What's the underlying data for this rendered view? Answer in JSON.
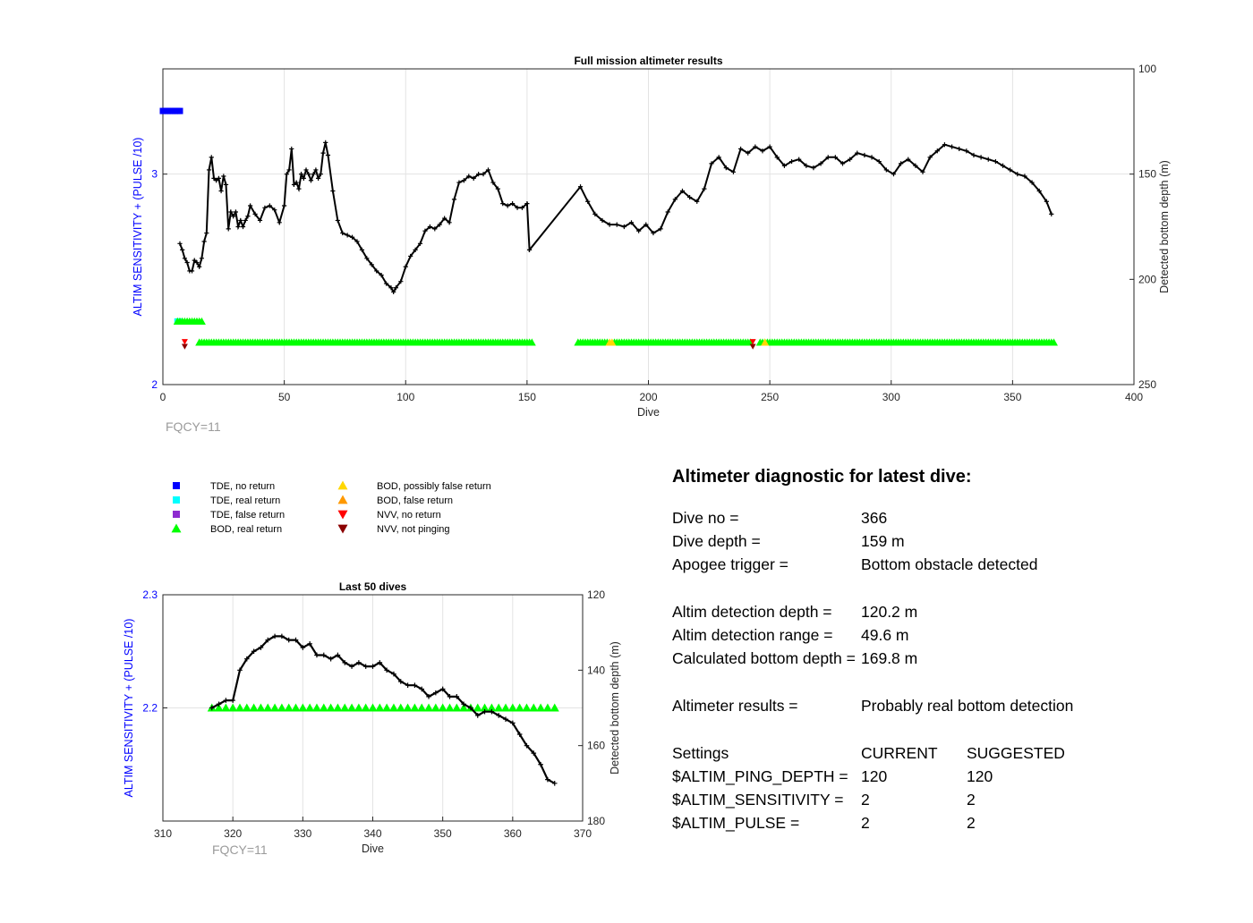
{
  "chart_data": [
    {
      "type": "scatter",
      "title": "Full mission altimeter results",
      "xlabel": "Dive",
      "ylabel_left": "ALTIM SENSITIVITY + (PULSE /10)",
      "ylabel_right": "Detected bottom depth (m)",
      "xlim": [
        0,
        400
      ],
      "ylim_left": [
        2,
        3.5
      ],
      "ylim_right": [
        100,
        250
      ],
      "right_axis_reversed": true,
      "grid": true,
      "xticks": [
        "0",
        "50",
        "100",
        "150",
        "200",
        "250",
        "300",
        "350",
        "400"
      ],
      "yticks_left": [
        "2",
        "3"
      ],
      "yticks_right": [
        "100",
        "150",
        "200",
        "250"
      ],
      "annotation": "FQCY=11",
      "tde_no_return": {
        "dives": [
          0,
          1,
          2,
          3,
          4,
          5,
          6,
          7
        ],
        "value": 3.3
      },
      "tde_real_return": {
        "dives": [
          6,
          7
        ],
        "value": 2.3
      },
      "bod_real_return_upper": {
        "dives": [
          6,
          7,
          8,
          9,
          10,
          11,
          12,
          13,
          14,
          15,
          16
        ],
        "value": 2.3
      },
      "bod_real_return_lower": {
        "ranges": [
          [
            15,
            152
          ],
          [
            171,
            183
          ],
          [
            186,
            198
          ],
          [
            199,
            242
          ],
          [
            246,
            367
          ]
        ],
        "value": 2.2
      },
      "bod_possibly_false": {
        "dives": [
          184,
          185,
          248
        ],
        "value": 2.2
      },
      "nvv_no_return": {
        "dives": [
          9,
          243
        ],
        "value": 2.2
      },
      "nvv_not_pinging": {
        "dives": [
          9,
          243
        ],
        "value": 2.19
      },
      "bottom_depth": {
        "x": [
          7,
          8,
          9,
          10,
          11,
          12,
          13,
          14,
          15,
          16,
          17,
          18,
          19,
          20,
          21,
          22,
          23,
          24,
          25,
          26,
          27,
          28,
          29,
          30,
          31,
          32,
          33,
          34,
          35,
          36,
          38,
          40,
          42,
          44,
          46,
          48,
          50,
          51,
          52,
          53,
          54,
          55,
          56,
          57,
          58,
          59,
          60,
          61,
          62,
          63,
          64,
          65,
          66,
          67,
          68,
          70,
          72,
          74,
          76,
          78,
          80,
          82,
          84,
          86,
          88,
          90,
          92,
          94,
          95,
          96,
          98,
          100,
          102,
          104,
          106,
          108,
          110,
          112,
          114,
          116,
          118,
          120,
          122,
          124,
          126,
          128,
          130,
          132,
          134,
          136,
          138,
          140,
          142,
          144,
          146,
          148,
          150,
          151,
          172,
          175,
          178,
          181,
          184,
          187,
          190,
          193,
          196,
          199,
          202,
          205,
          208,
          211,
          214,
          217,
          220,
          223,
          226,
          229,
          232,
          235,
          238,
          241,
          244,
          247,
          250,
          253,
          256,
          259,
          262,
          265,
          268,
          271,
          274,
          277,
          280,
          283,
          286,
          289,
          292,
          295,
          298,
          301,
          304,
          307,
          310,
          313,
          316,
          319,
          322,
          325,
          328,
          331,
          334,
          337,
          340,
          343,
          346,
          349,
          352,
          355,
          358,
          361,
          364,
          366
        ],
        "y": [
          183,
          186,
          190,
          192,
          196,
          196,
          191,
          192,
          194,
          190,
          182,
          178,
          148,
          142,
          152,
          153,
          152,
          158,
          151,
          155,
          176,
          168,
          170,
          168,
          175,
          172,
          175,
          172,
          170,
          165,
          169,
          172,
          166,
          165,
          167,
          173,
          165,
          150,
          148,
          138,
          155,
          154,
          157,
          150,
          152,
          148,
          150,
          153,
          150,
          148,
          152,
          150,
          140,
          135,
          141,
          158,
          172,
          178,
          179,
          180,
          182,
          186,
          190,
          193,
          196,
          198,
          202,
          204,
          206,
          204,
          201,
          194,
          189,
          186,
          183,
          177,
          175,
          176,
          174,
          171,
          173,
          162,
          154,
          153,
          151,
          152,
          150,
          150,
          148,
          154,
          157,
          164,
          165,
          164,
          166,
          166,
          164,
          186,
          156,
          163,
          169,
          172,
          174,
          174,
          175,
          173,
          177,
          174,
          178,
          176,
          168,
          162,
          158,
          161,
          163,
          157,
          145,
          142,
          147,
          149,
          138,
          140,
          137,
          139,
          137,
          142,
          146,
          144,
          143,
          146,
          147,
          145,
          142,
          142,
          145,
          143,
          140,
          141,
          142,
          144,
          148,
          150,
          145,
          143,
          146,
          149,
          142,
          139,
          136,
          137,
          138,
          139,
          141,
          142,
          143,
          144,
          146,
          148,
          150,
          151,
          154,
          158,
          163,
          169
        ]
      }
    },
    {
      "type": "scatter",
      "title": "Last 50 dives",
      "xlabel": "Dive",
      "ylabel_left": "ALTIM SENSITIVITY + (PULSE /10)",
      "ylabel_right": "Detected bottom depth (m)",
      "xlim": [
        310,
        370
      ],
      "ylim_left": [
        2.1,
        2.3
      ],
      "ylim_right": [
        120,
        180
      ],
      "right_axis_reversed": true,
      "grid": true,
      "xticks": [
        "310",
        "320",
        "330",
        "340",
        "350",
        "360",
        "370"
      ],
      "yticks_left": [
        "2.2",
        "2.3"
      ],
      "yticks_right": [
        "120",
        "140",
        "160",
        "180"
      ],
      "annotation": "FQCY=11",
      "bod_real_return": {
        "range": [
          317,
          366
        ],
        "value": 2.2
      },
      "bottom_depth": {
        "x": [
          317,
          318,
          319,
          320,
          321,
          322,
          323,
          324,
          325,
          326,
          327,
          328,
          329,
          330,
          331,
          332,
          333,
          334,
          335,
          336,
          337,
          338,
          339,
          340,
          341,
          342,
          343,
          344,
          345,
          346,
          347,
          348,
          349,
          350,
          351,
          352,
          353,
          354,
          355,
          356,
          357,
          358,
          359,
          360,
          361,
          362,
          363,
          364,
          365,
          366
        ],
        "y": [
          150,
          149,
          148,
          148,
          140,
          137,
          135,
          134,
          132,
          131,
          131,
          132,
          132,
          134,
          133,
          136,
          136,
          137,
          136,
          138,
          139,
          138,
          139,
          139,
          138,
          140,
          141,
          143,
          144,
          144,
          145,
          147,
          146,
          145,
          147,
          147,
          149,
          150,
          152,
          151,
          151,
          152,
          153,
          154,
          157,
          160,
          162,
          165,
          169,
          170
        ]
      }
    }
  ],
  "legend": [
    {
      "label": "TDE, no return",
      "color": "#0000ff",
      "marker": "square"
    },
    {
      "label": "TDE, real return",
      "color": "#00ffff",
      "marker": "square"
    },
    {
      "label": "TDE, false return",
      "color": "#8e2bd0",
      "marker": "square"
    },
    {
      "label": "BOD, real return",
      "color": "#00ff00",
      "marker": "triangle-up"
    },
    {
      "label": "BOD, possibly false return",
      "color": "#ffd700",
      "marker": "triangle-up"
    },
    {
      "label": "BOD, false return",
      "color": "#ff9900",
      "marker": "triangle-up"
    },
    {
      "label": "NVV, no return",
      "color": "#ff0000",
      "marker": "triangle-down"
    },
    {
      "label": "NVV, not pinging",
      "color": "#8b0000",
      "marker": "triangle-down"
    }
  ],
  "diagnostic": {
    "heading": "Altimeter diagnostic for latest dive:",
    "lines": [
      {
        "label": "Dive no =",
        "value": "366"
      },
      {
        "label": "Dive depth =",
        "value": "159 m"
      },
      {
        "label": "Apogee trigger =",
        "value": "Bottom obstacle detected"
      },
      {
        "label": "Altim detection depth =",
        "value": "120.2 m"
      },
      {
        "label": "Altim detection range =",
        "value": "49.6 m"
      },
      {
        "label": "Calculated bottom depth =",
        "value": "169.8 m"
      },
      {
        "label": "Altimeter results =",
        "value": "Probably real bottom detection"
      }
    ],
    "settings_header": {
      "label": "Settings",
      "current": "CURRENT",
      "suggested": "SUGGESTED"
    },
    "settings": [
      {
        "label": "$ALTIM_PING_DEPTH =",
        "current": "120",
        "suggested": "120"
      },
      {
        "label": "$ALTIM_SENSITIVITY =",
        "current": "2",
        "suggested": "2"
      },
      {
        "label": "$ALTIM_PULSE =",
        "current": "2",
        "suggested": "2"
      }
    ]
  }
}
